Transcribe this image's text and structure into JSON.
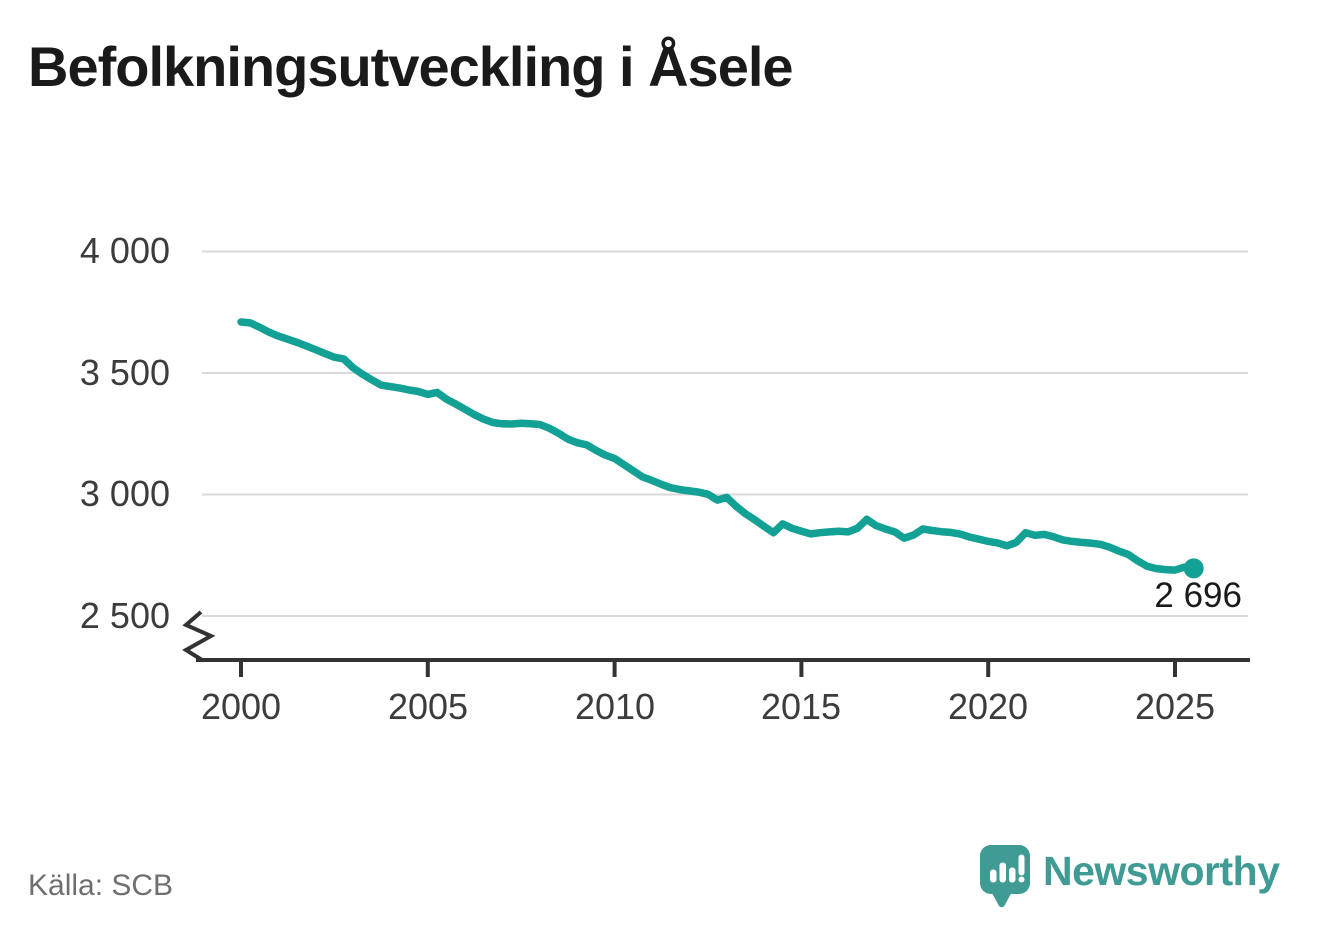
{
  "title": "Befolkningsutveckling i Åsele",
  "source": "Källa: SCB",
  "branding": {
    "name": "Newsworthy"
  },
  "colors": {
    "line": "#12A194",
    "grid": "#D9D9D9",
    "axis": "#333333",
    "brand": "#3F9B94",
    "title_text": "#1A1A1A",
    "muted_text": "#6F6F6F",
    "tick_text": "#3C3C3C"
  },
  "chart_data": {
    "type": "line",
    "title": "Befolkningsutveckling i Åsele",
    "xlabel": "",
    "ylabel": "",
    "grid": "horizontal",
    "legend": "none",
    "axis_break": true,
    "xlim": [
      1998.8,
      2027.2
    ],
    "ylim": [
      2380,
      4000
    ],
    "x_ticks": [
      {
        "value": 2000,
        "label": "2000"
      },
      {
        "value": 2005,
        "label": "2005"
      },
      {
        "value": 2010,
        "label": "2010"
      },
      {
        "value": 2015,
        "label": "2015"
      },
      {
        "value": 2020,
        "label": "2020"
      },
      {
        "value": 2025,
        "label": "2025"
      }
    ],
    "y_ticks": [
      {
        "value": 4000,
        "label": "4 000"
      },
      {
        "value": 3500,
        "label": "3 500"
      },
      {
        "value": 3000,
        "label": "3 000"
      },
      {
        "value": 2500,
        "label": "2 500"
      }
    ],
    "end_label": "2 696",
    "end_value": 2696,
    "series": [
      {
        "name": "Befolkning",
        "x": [
          2000.0,
          2000.25,
          2000.5,
          2000.75,
          2001.0,
          2001.25,
          2001.5,
          2001.75,
          2002.0,
          2002.25,
          2002.5,
          2002.75,
          2003.0,
          2003.25,
          2003.5,
          2003.75,
          2004.0,
          2004.25,
          2004.5,
          2004.75,
          2005.0,
          2005.25,
          2005.5,
          2005.75,
          2006.0,
          2006.25,
          2006.5,
          2006.75,
          2007.0,
          2007.25,
          2007.5,
          2007.75,
          2008.0,
          2008.25,
          2008.5,
          2008.75,
          2009.0,
          2009.25,
          2009.5,
          2009.75,
          2010.0,
          2010.25,
          2010.5,
          2010.75,
          2011.0,
          2011.25,
          2011.5,
          2011.75,
          2012.0,
          2012.25,
          2012.5,
          2012.75,
          2013.0,
          2013.25,
          2013.5,
          2013.75,
          2014.0,
          2014.25,
          2014.5,
          2014.75,
          2015.0,
          2015.25,
          2015.5,
          2015.75,
          2016.0,
          2016.25,
          2016.5,
          2016.75,
          2017.0,
          2017.25,
          2017.5,
          2017.75,
          2018.0,
          2018.25,
          2018.5,
          2018.75,
          2019.0,
          2019.25,
          2019.5,
          2019.75,
          2020.0,
          2020.25,
          2020.5,
          2020.75,
          2021.0,
          2021.25,
          2021.5,
          2021.75,
          2022.0,
          2022.25,
          2022.5,
          2022.75,
          2023.0,
          2023.25,
          2023.5,
          2023.75,
          2024.0,
          2024.25,
          2024.5,
          2024.75,
          2025.0,
          2025.25,
          2025.5
        ],
        "values": [
          3710,
          3706,
          3688,
          3668,
          3652,
          3639,
          3626,
          3611,
          3596,
          3580,
          3565,
          3558,
          3522,
          3495,
          3472,
          3450,
          3444,
          3438,
          3430,
          3424,
          3412,
          3420,
          3392,
          3372,
          3350,
          3328,
          3310,
          3296,
          3291,
          3290,
          3293,
          3291,
          3288,
          3273,
          3252,
          3228,
          3213,
          3204,
          3182,
          3162,
          3148,
          3123,
          3097,
          3072,
          3058,
          3042,
          3028,
          3020,
          3015,
          3010,
          3001,
          2977,
          2988,
          2952,
          2921,
          2896,
          2869,
          2843,
          2879,
          2861,
          2849,
          2838,
          2843,
          2846,
          2849,
          2846,
          2861,
          2898,
          2872,
          2858,
          2846,
          2820,
          2833,
          2858,
          2852,
          2847,
          2844,
          2837,
          2825,
          2816,
          2807,
          2801,
          2789,
          2803,
          2843,
          2832,
          2836,
          2826,
          2813,
          2807,
          2803,
          2800,
          2795,
          2783,
          2767,
          2753,
          2727,
          2705,
          2695,
          2691,
          2689,
          2701,
          2696
        ]
      }
    ]
  }
}
